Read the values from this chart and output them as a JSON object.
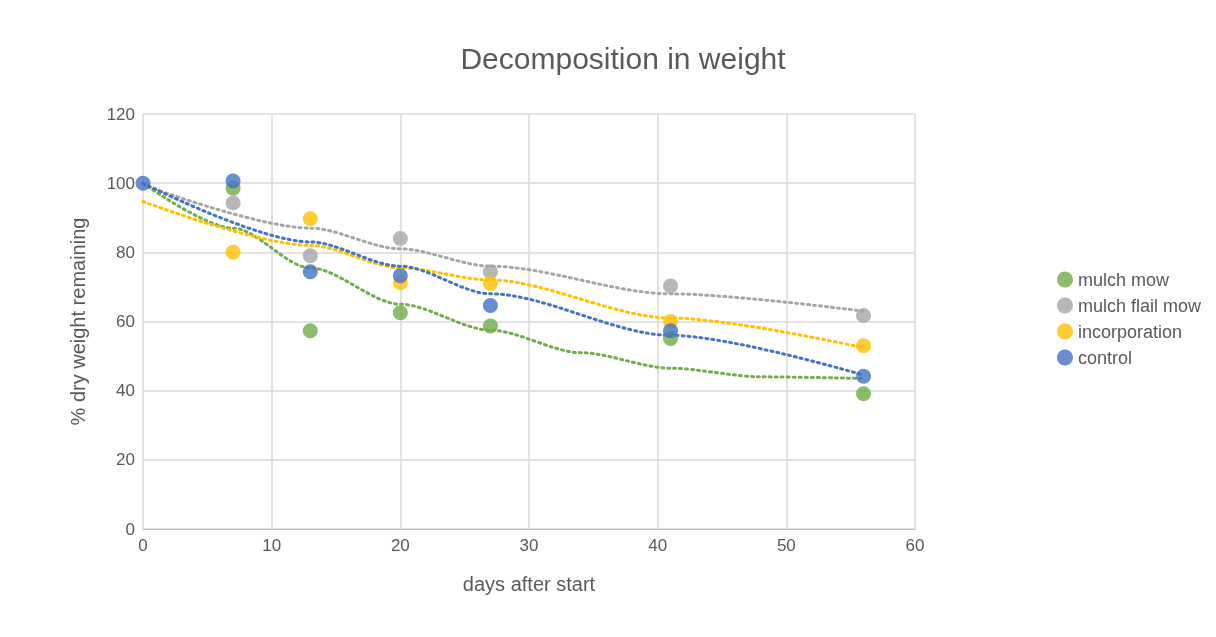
{
  "chart_data": {
    "type": "scatter",
    "title": "Decomposition in weight",
    "xlabel": "days after start",
    "ylabel": "% dry weight remaining",
    "xlim": [
      0,
      60
    ],
    "xticks": [
      0,
      10,
      20,
      30,
      40,
      50,
      60
    ],
    "ylim": [
      0,
      120
    ],
    "yticks": [
      0,
      20,
      40,
      60,
      80,
      100,
      120
    ],
    "grid": true,
    "legend": "right",
    "marker": "circle",
    "x": [
      0,
      7,
      13,
      20,
      27,
      41,
      56
    ],
    "series": [
      {
        "name": "mulch mow",
        "color": "#70ad47",
        "values": [
          null,
          98.5,
          57.3,
          62.5,
          58.7,
          55.1,
          39.1
        ]
      },
      {
        "name": "mulch flail mow",
        "color": "#a5a5a5",
        "values": [
          null,
          94.3,
          79,
          84,
          74.4,
          70.3,
          61.7
        ]
      },
      {
        "name": "incorporation",
        "color": "#ffc000",
        "values": [
          null,
          80,
          89.7,
          71.2,
          71,
          60,
          53
        ]
      },
      {
        "name": "control",
        "color": "#4472c4",
        "values": [
          100,
          100.6,
          74.4,
          73.2,
          64.6,
          57.3,
          44.2
        ]
      },
      {
        "type": "line",
        "color": "#70ad47",
        "line_style": "dotted",
        "marker": "none",
        "x": [
          0,
          7,
          13,
          20,
          27,
          34,
          41,
          48,
          56
        ],
        "values": [
          100,
          87,
          75.5,
          65,
          57.5,
          51,
          46.5,
          44,
          43.5
        ]
      },
      {
        "type": "line",
        "color": "#a5a5a5",
        "line_style": "dotted",
        "marker": "none",
        "x": [
          0,
          13,
          20,
          27,
          41,
          56
        ],
        "values": [
          99.5,
          87,
          81,
          76,
          68,
          63
        ]
      },
      {
        "type": "line",
        "color": "#ffc000",
        "line_style": "dotted",
        "marker": "none",
        "x": [
          0,
          13,
          20,
          27,
          41,
          56
        ],
        "values": [
          94.7,
          82,
          75.5,
          72,
          61,
          52.4
        ]
      },
      {
        "type": "line",
        "color": "#4472c4",
        "line_style": "dotted",
        "marker": "none",
        "x": [
          0,
          13,
          20,
          27,
          41,
          56
        ],
        "values": [
          100,
          83,
          76,
          68,
          56,
          44.5
        ]
      }
    ]
  }
}
